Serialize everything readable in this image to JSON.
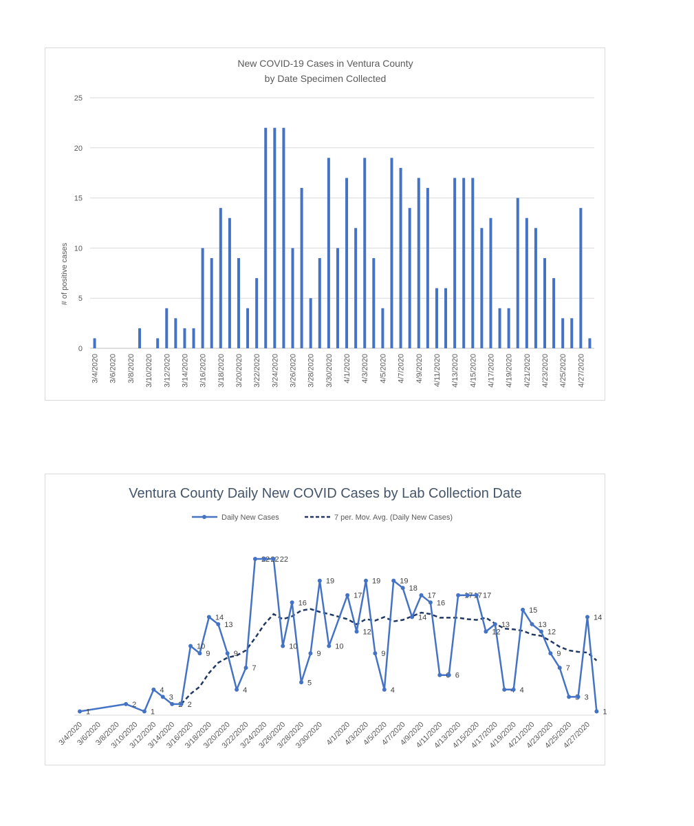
{
  "chart_data": [
    {
      "type": "bar",
      "title": "New COVID-19 Cases in Ventura County",
      "subtitle": "by Date Specimen Collected",
      "ylabel": "# of positive cases",
      "xlabel": "",
      "ylim": [
        0,
        25
      ],
      "yticks": [
        0,
        5,
        10,
        15,
        20,
        25
      ],
      "grid": true,
      "bar_color": "#4472c4",
      "categories": [
        "3/4/2020",
        "3/5/2020",
        "3/6/2020",
        "3/7/2020",
        "3/8/2020",
        "3/9/2020",
        "3/10/2020",
        "3/11/2020",
        "3/12/2020",
        "3/13/2020",
        "3/14/2020",
        "3/15/2020",
        "3/16/2020",
        "3/17/2020",
        "3/18/2020",
        "3/19/2020",
        "3/20/2020",
        "3/21/2020",
        "3/22/2020",
        "3/23/2020",
        "3/24/2020",
        "3/25/2020",
        "3/26/2020",
        "3/27/2020",
        "3/28/2020",
        "3/29/2020",
        "3/30/2020",
        "3/31/2020",
        "4/1/2020",
        "4/2/2020",
        "4/3/2020",
        "4/4/2020",
        "4/5/2020",
        "4/6/2020",
        "4/7/2020",
        "4/8/2020",
        "4/9/2020",
        "4/10/2020",
        "4/11/2020",
        "4/12/2020",
        "4/13/2020",
        "4/14/2020",
        "4/15/2020",
        "4/16/2020",
        "4/17/2020",
        "4/18/2020",
        "4/19/2020",
        "4/20/2020",
        "4/21/2020",
        "4/22/2020",
        "4/23/2020",
        "4/24/2020",
        "4/25/2020",
        "4/26/2020",
        "4/27/2020",
        "4/28/2020"
      ],
      "values": [
        1,
        0,
        0,
        0,
        0,
        2,
        0,
        1,
        4,
        3,
        2,
        2,
        10,
        9,
        14,
        13,
        9,
        4,
        7,
        22,
        22,
        22,
        10,
        16,
        5,
        9,
        19,
        10,
        17,
        12,
        19,
        9,
        4,
        19,
        18,
        14,
        17,
        16,
        6,
        6,
        17,
        17,
        17,
        12,
        13,
        4,
        4,
        15,
        13,
        12,
        9,
        7,
        3,
        3,
        14,
        1
      ],
      "tick_labels_shown": [
        "3/4/2020",
        "3/6/2020",
        "3/8/2020",
        "3/10/2020",
        "3/12/2020",
        "3/14/2020",
        "3/16/2020",
        "3/18/2020",
        "3/20/2020",
        "3/22/2020",
        "3/24/2020",
        "3/26/2020",
        "3/28/2020",
        "3/30/2020",
        "4/1/2020",
        "4/3/2020",
        "4/5/2020",
        "4/7/2020",
        "4/9/2020",
        "4/11/2020",
        "4/13/2020",
        "4/15/2020",
        "4/17/2020",
        "4/19/2020",
        "4/21/2020",
        "4/23/2020",
        "4/25/2020",
        "4/27/2020"
      ]
    },
    {
      "type": "line",
      "title": "Ventura County Daily New COVID Cases by Lab Collection Date",
      "legend_position": "top",
      "x": [
        "3/4/2020",
        "3/9/2020",
        "3/11/2020",
        "3/12/2020",
        "3/13/2020",
        "3/14/2020",
        "3/15/2020",
        "3/16/2020",
        "3/17/2020",
        "3/18/2020",
        "3/19/2020",
        "3/20/2020",
        "3/21/2020",
        "3/22/2020",
        "3/23/2020",
        "3/24/2020",
        "3/25/2020",
        "3/26/2020",
        "3/27/2020",
        "3/28/2020",
        "3/29/2020",
        "3/30/2020",
        "3/31/2020",
        "4/1/2020",
        "4/2/2020",
        "4/3/2020",
        "4/4/2020",
        "4/5/2020",
        "4/6/2020",
        "4/7/2020",
        "4/8/2020",
        "4/9/2020",
        "4/10/2020",
        "4/11/2020",
        "4/12/2020",
        "4/13/2020",
        "4/14/2020",
        "4/15/2020",
        "4/16/2020",
        "4/17/2020",
        "4/18/2020",
        "4/19/2020",
        "4/20/2020",
        "4/21/2020",
        "4/22/2020",
        "4/23/2020",
        "4/24/2020",
        "4/25/2020",
        "4/26/2020",
        "4/27/2020",
        "4/28/2020"
      ],
      "series": [
        {
          "name": "Daily New Cases",
          "color": "#4472c4",
          "values": [
            1,
            2,
            1,
            4,
            3,
            2,
            2,
            10,
            9,
            14,
            13,
            9,
            4,
            7,
            22,
            22,
            22,
            10,
            16,
            5,
            9,
            19,
            10,
            17,
            12,
            19,
            9,
            4,
            19,
            18,
            14,
            17,
            16,
            6,
            6,
            17,
            17,
            17,
            12,
            13,
            4,
            4,
            15,
            13,
            12,
            9,
            7,
            3,
            3,
            14,
            1
          ]
        },
        {
          "name": "7 per. Mov. Avg. (Daily New Cases)",
          "color": "#1f3864",
          "style": "dashed",
          "values": [
            null,
            null,
            null,
            null,
            null,
            null,
            2.0,
            3.4,
            4.4,
            6.3,
            7.7,
            8.4,
            8.7,
            9.4,
            11.1,
            13.0,
            14.4,
            13.7,
            14.1,
            14.9,
            15.1,
            14.7,
            14.4,
            13.7,
            13.0,
            13.7,
            13.5,
            14.0,
            13.4,
            13.6,
            14.1,
            14.6,
            14.4,
            13.9,
            13.9,
            13.9,
            13.7,
            13.6,
            13.9,
            13.1,
            12.4,
            12.3,
            12.1,
            11.6,
            11.4,
            10.7,
            9.9,
            9.4,
            9.2,
            9.1,
            8.0
          ]
        }
      ],
      "tick_labels_shown": [
        "3/4/2020",
        "3/6/2020",
        "3/8/2020",
        "3/10/2020",
        "3/12/2020",
        "3/14/2020",
        "3/16/2020",
        "3/18/2020",
        "3/20/2020",
        "3/22/2020",
        "3/24/2020",
        "3/26/2020",
        "3/28/2020",
        "3/30/2020",
        "4/1/2020",
        "4/3/2020",
        "4/5/2020",
        "4/7/2020",
        "4/9/2020",
        "4/11/2020",
        "4/13/2020",
        "4/15/2020",
        "4/17/2020",
        "4/19/2020",
        "4/21/2020",
        "4/23/2020",
        "4/25/2020",
        "4/27/2020"
      ],
      "data_labels": true
    }
  ]
}
